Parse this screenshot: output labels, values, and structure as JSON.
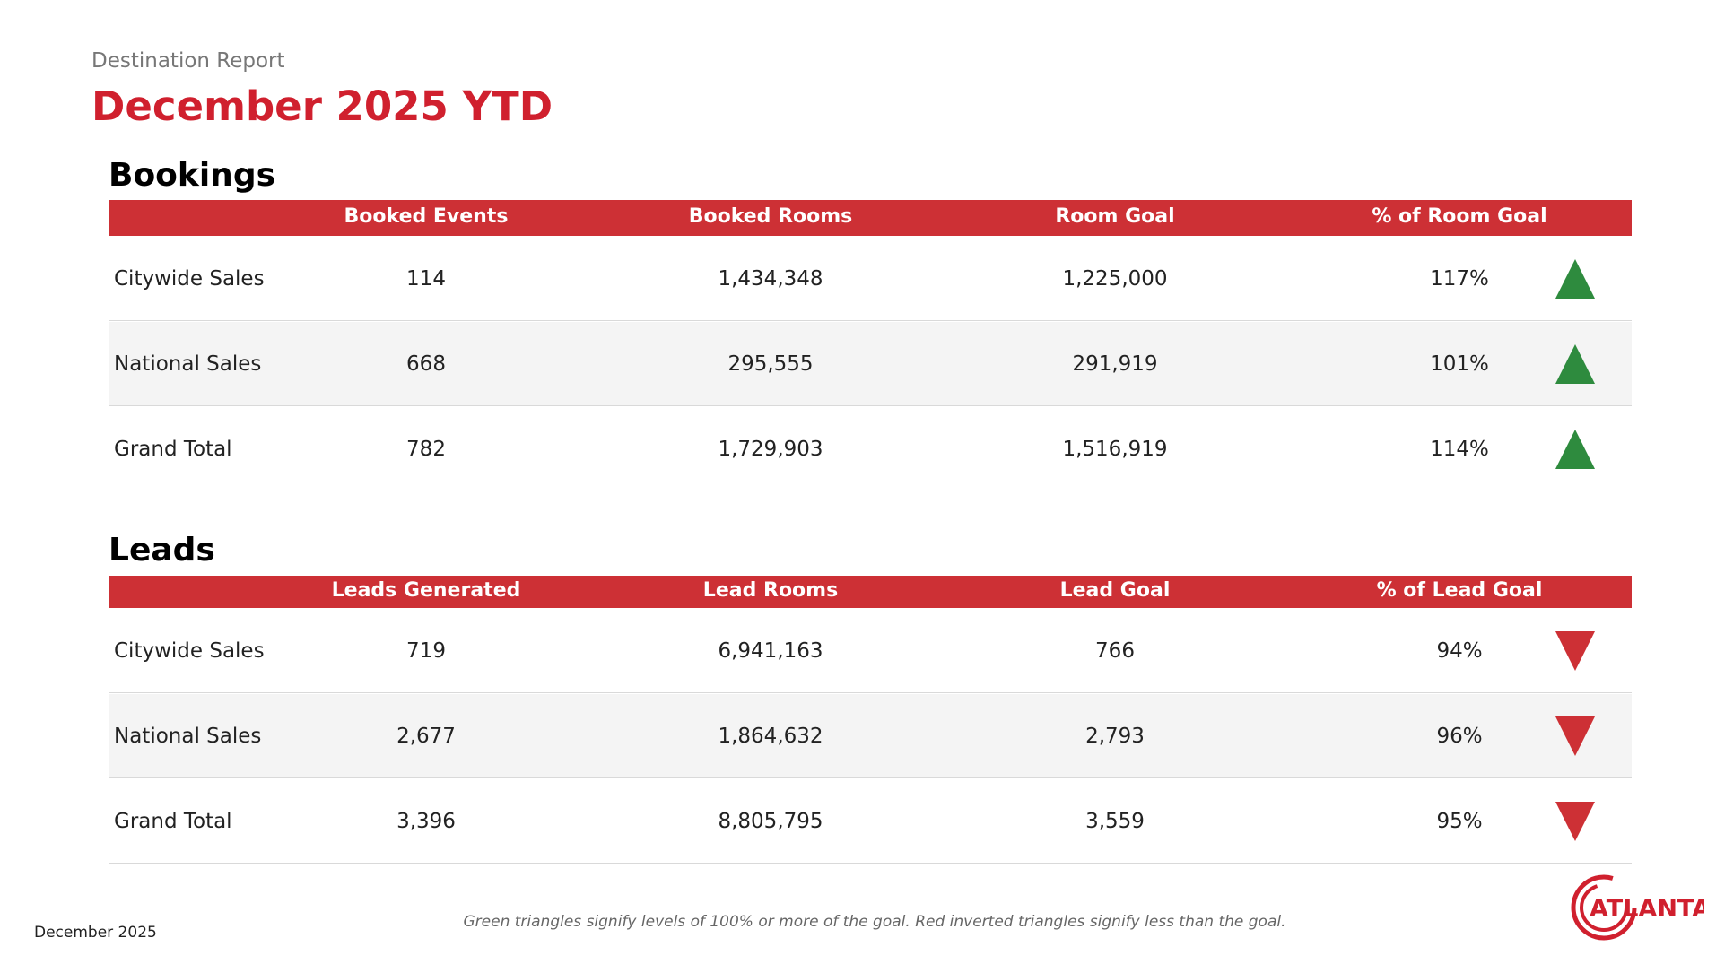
{
  "header": {
    "subtitle": "Destination Report",
    "title": "December 2025 YTD"
  },
  "sections": [
    {
      "title": "Bookings",
      "columns": [
        "",
        "Booked Events",
        "Booked Rooms",
        "Room Goal",
        "% of Room Goal"
      ],
      "rows": [
        {
          "label": "Citywide Sales",
          "cells": [
            "114",
            "1,434,348",
            "1,225,000",
            "117%"
          ],
          "status": "up"
        },
        {
          "label": "National Sales",
          "cells": [
            "668",
            "295,555",
            "291,919",
            "101%"
          ],
          "status": "up"
        },
        {
          "label": "Grand Total",
          "cells": [
            "782",
            "1,729,903",
            "1,516,919",
            "114%"
          ],
          "status": "up"
        }
      ]
    },
    {
      "title": "Leads",
      "columns": [
        "",
        "Leads Generated",
        "Lead Rooms",
        "Lead Goal",
        "% of Lead Goal"
      ],
      "rows": [
        {
          "label": "Citywide Sales",
          "cells": [
            "719",
            "6,941,163",
            "766",
            "94%"
          ],
          "status": "down"
        },
        {
          "label": "National Sales",
          "cells": [
            "2,677",
            "1,864,632",
            "2,793",
            "96%"
          ],
          "status": "down"
        },
        {
          "label": "Grand Total",
          "cells": [
            "3,396",
            "8,805,795",
            "3,559",
            "95%"
          ],
          "status": "down"
        }
      ]
    }
  ],
  "footer": {
    "date": "December 2025",
    "note": "Green triangles signify levels of 100% or more of the goal. Red inverted triangles signify less than the goal.",
    "logo": "ATLANTA"
  }
}
